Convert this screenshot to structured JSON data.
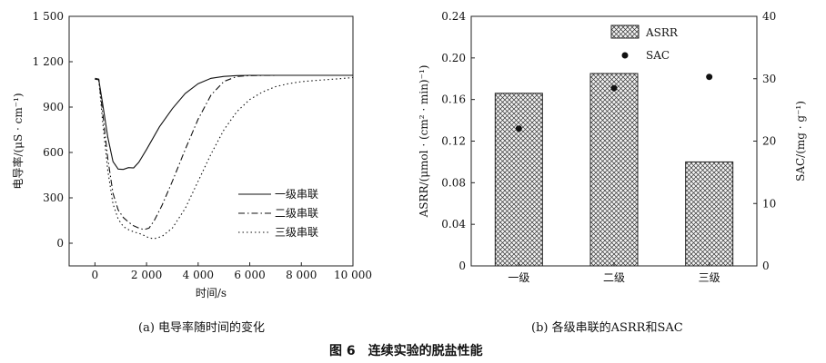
{
  "chart_data": [
    {
      "type": "line",
      "caption": "(a) 电导率随时间的变化",
      "xlabel": "时间/s",
      "ylabel": "电导率/(μS · cm⁻¹)",
      "xlim": [
        -1000,
        10000
      ],
      "ylim": [
        -150,
        1500
      ],
      "xticks": [
        "0",
        "2 000",
        "4 000",
        "6 000",
        "8 000",
        "10 000"
      ],
      "yticks": [
        "0",
        "300",
        "600",
        "900",
        "1 200",
        "1 500"
      ],
      "legend_position": "lower-right",
      "series": [
        {
          "name": "一级串联",
          "style": "solid",
          "x": [
            0,
            150,
            300,
            500,
            700,
            900,
            1100,
            1300,
            1500,
            1700,
            2000,
            2500,
            3000,
            3500,
            4000,
            4500,
            5000,
            5500,
            6000,
            7000,
            8000,
            9000,
            10000
          ],
          "y": [
            1085,
            1080,
            920,
            700,
            540,
            490,
            488,
            500,
            498,
            535,
            620,
            770,
            890,
            990,
            1055,
            1090,
            1103,
            1108,
            1110,
            1110,
            1110,
            1110,
            1110
          ]
        },
        {
          "name": "二级串联",
          "style": "dashdot",
          "x": [
            0,
            150,
            300,
            500,
            700,
            900,
            1100,
            1300,
            1500,
            1700,
            1900,
            2100,
            2300,
            2600,
            3000,
            3500,
            4000,
            4500,
            5000,
            5500,
            6000,
            7000,
            8000,
            9000,
            10000
          ],
          "y": [
            1090,
            1085,
            860,
            560,
            330,
            220,
            170,
            140,
            115,
            100,
            90,
            100,
            150,
            250,
            410,
            620,
            820,
            980,
            1070,
            1102,
            1108,
            1110,
            1110,
            1110,
            1110
          ]
        },
        {
          "name": "三级串联",
          "style": "dotted",
          "x": [
            0,
            150,
            300,
            500,
            700,
            900,
            1100,
            1300,
            1500,
            1800,
            2100,
            2300,
            2600,
            3000,
            3500,
            4000,
            4500,
            5000,
            5500,
            6000,
            6500,
            7000,
            7500,
            8000,
            8500,
            9000,
            9500,
            10000
          ],
          "y": [
            1085,
            1080,
            800,
            480,
            260,
            160,
            110,
            90,
            75,
            60,
            35,
            30,
            45,
            100,
            230,
            410,
            590,
            750,
            870,
            950,
            1000,
            1035,
            1055,
            1068,
            1075,
            1082,
            1088,
            1095
          ]
        }
      ]
    },
    {
      "type": "bar",
      "caption": "(b) 各级串联的ASRR和SAC",
      "categories": [
        "一级",
        "二级",
        "三级"
      ],
      "ylabel": "ASRR/(μmol · (cm² · min)⁻¹)",
      "y2label": "SAC/(mg · g⁻¹)",
      "ylim": [
        0,
        0.24
      ],
      "y2lim": [
        0,
        40
      ],
      "yticks": [
        "0",
        "0.04",
        "0.08",
        "0.12",
        "0.16",
        "0.20",
        "0.24"
      ],
      "y2ticks": [
        "0",
        "10",
        "20",
        "30",
        "40"
      ],
      "legend_position": "top-center",
      "series": [
        {
          "name": "ASRR",
          "kind": "bar",
          "axis": "left",
          "values": [
            0.166,
            0.185,
            0.1
          ]
        },
        {
          "name": "SAC",
          "kind": "scatter",
          "axis": "right",
          "values": [
            22.0,
            28.5,
            30.3
          ]
        }
      ]
    }
  ],
  "figure_caption": "图 6　连续实验的脱盐性能"
}
